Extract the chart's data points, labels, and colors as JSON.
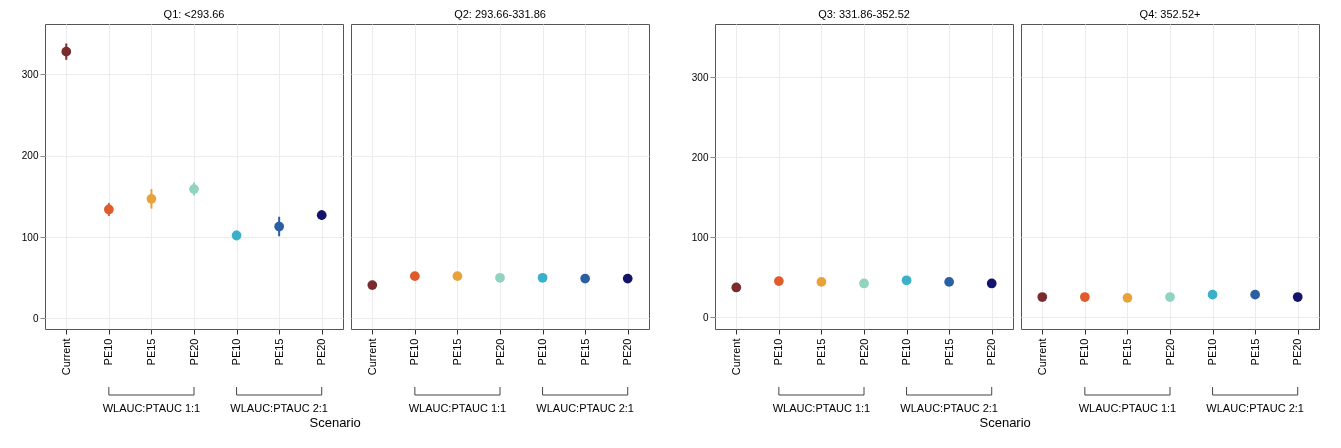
{
  "chart_data": [
    {
      "type": "scatter",
      "title": "Q1: <293.66",
      "xlabel": "Scenario",
      "categories": [
        "Current",
        "PE10",
        "PE15",
        "PE20",
        "PE10",
        "PE15",
        "PE20"
      ],
      "values": [
        328,
        134,
        147,
        159,
        102,
        113,
        127
      ],
      "errors": [
        10,
        8,
        12,
        8,
        6,
        12,
        6
      ],
      "colors": [
        "#7b2a2e",
        "#e05a2b",
        "#e8a23a",
        "#8fd3c0",
        "#3bb0c9",
        "#2a5fa3",
        "#13136b"
      ],
      "ylim": [
        -13,
        362
      ],
      "yticks": [
        0,
        100,
        200,
        300
      ],
      "annotations": [
        "WLAUC:PTAUC 1:1",
        "WLAUC:PTAUC 2:1"
      ],
      "grid": true,
      "marker": "circle"
    },
    {
      "type": "scatter",
      "title": "Q2: 293.66-331.86",
      "categories": [
        "Current",
        "PE10",
        "PE15",
        "PE20",
        "PE10",
        "PE15",
        "PE20"
      ],
      "values": [
        41,
        52,
        52,
        50,
        50,
        49,
        49
      ],
      "colors": [
        "#7b2a2e",
        "#e05a2b",
        "#e8a23a",
        "#8fd3c0",
        "#3bb0c9",
        "#2a5fa3",
        "#13136b"
      ],
      "ylim": [
        -13,
        362
      ],
      "yticks": [
        0,
        100,
        200,
        300
      ],
      "tick_labels": "x",
      "annotations": [
        "WLAUC:PTAUC 1:1",
        "WLAUC:PTAUC 2:1"
      ],
      "grid": true,
      "marker": "circle"
    },
    {
      "type": "scatter",
      "title": "Q3: 331.86-352.52",
      "xlabel": "Scenario",
      "categories": [
        "Current",
        "PE10",
        "PE15",
        "PE20",
        "PE10",
        "PE15",
        "PE20"
      ],
      "values": [
        37,
        45,
        44,
        42,
        46,
        44,
        42
      ],
      "colors": [
        "#7b2a2e",
        "#e05a2b",
        "#e8a23a",
        "#8fd3c0",
        "#3bb0c9",
        "#2a5fa3",
        "#13136b"
      ],
      "ylim": [
        -15,
        367
      ],
      "yticks": [
        0,
        100,
        200,
        300
      ],
      "annotations": [
        "WLAUC:PTAUC 1:1",
        "WLAUC:PTAUC 2:1"
      ],
      "grid": true,
      "marker": "circle"
    },
    {
      "type": "scatter",
      "title": "Q4: 352.52+",
      "categories": [
        "Current",
        "PE10",
        "PE15",
        "PE20",
        "PE10",
        "PE15",
        "PE20"
      ],
      "values": [
        25,
        25,
        24,
        25,
        28,
        28,
        25
      ],
      "colors": [
        "#7b2a2e",
        "#e05a2b",
        "#e8a23a",
        "#8fd3c0",
        "#3bb0c9",
        "#2a5fa3",
        "#13136b"
      ],
      "ylim": [
        -15,
        367
      ],
      "yticks": [
        0,
        100,
        200,
        300
      ],
      "tick_labels": "x",
      "annotations": [
        "WLAUC:PTAUC 1:1",
        "WLAUC:PTAUC 2:1"
      ],
      "grid": true,
      "marker": "circle"
    }
  ]
}
